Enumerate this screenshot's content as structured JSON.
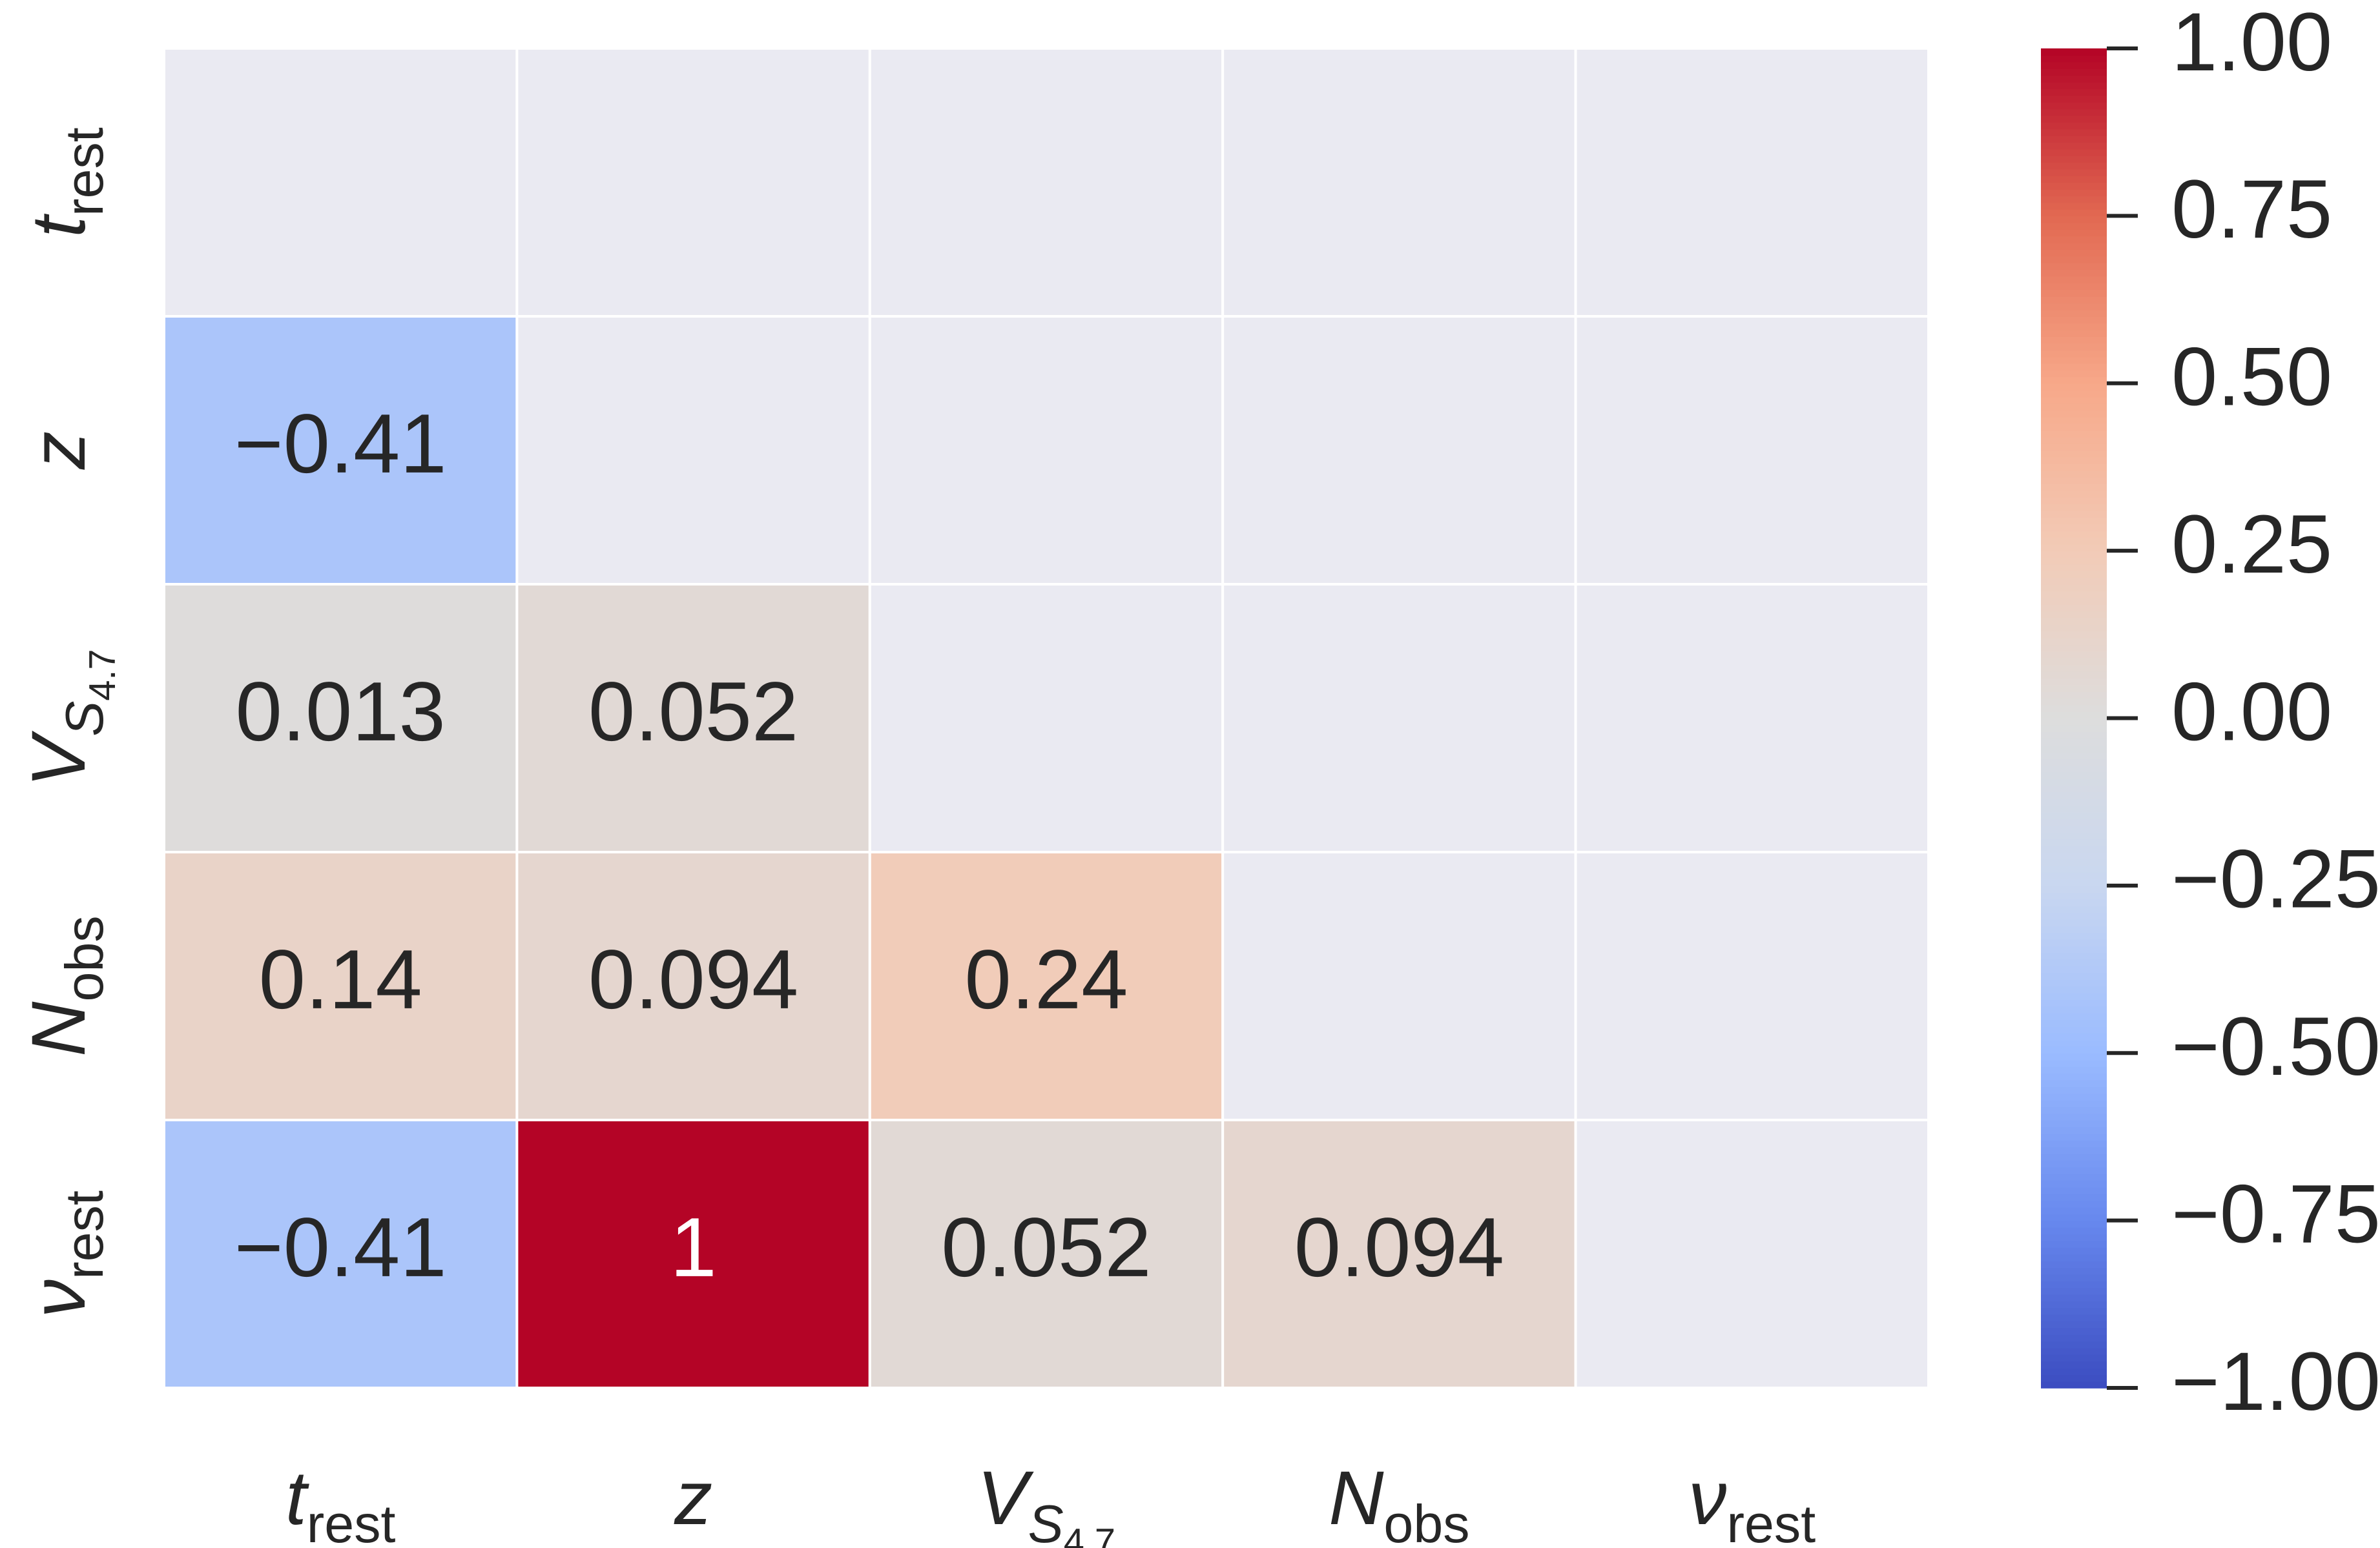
{
  "chart_data": {
    "type": "heatmap",
    "categories": [
      [
        "t",
        "rest"
      ],
      [
        "z"
      ],
      [
        "V",
        "S",
        "4.7"
      ],
      [
        "N",
        "obs"
      ],
      [
        "ν",
        "rest"
      ]
    ],
    "values": [
      [
        null,
        null,
        null,
        null,
        null
      ],
      [
        -0.41,
        null,
        null,
        null,
        null
      ],
      [
        0.013,
        0.052,
        null,
        null,
        null
      ],
      [
        0.14,
        0.094,
        0.24,
        null,
        null
      ],
      [
        -0.41,
        1,
        0.052,
        0.094,
        null
      ]
    ],
    "value_labels": [
      [
        null,
        null,
        null,
        null,
        null
      ],
      [
        "−0.41",
        null,
        null,
        null,
        null
      ],
      [
        "0.013",
        "0.052",
        null,
        null,
        null
      ],
      [
        "0.14",
        "0.094",
        "0.24",
        null,
        null
      ],
      [
        "−0.41",
        "1",
        "0.052",
        "0.094",
        null
      ]
    ],
    "vlim": [
      -1,
      1
    ],
    "colormap": [
      "#3b4cc0",
      "#6788ee",
      "#9abbff",
      "#c9d7f0",
      "#dddddd",
      "#f2cbb7",
      "#f7a889",
      "#e26952",
      "#b40426"
    ],
    "mask_color": "#eaeaf2",
    "cticks": [
      {
        "value": 1,
        "label": "1.00"
      },
      {
        "value": 0.75,
        "label": "0.75"
      },
      {
        "value": 0.5,
        "label": "0.50"
      },
      {
        "value": 0.25,
        "label": "0.25"
      },
      {
        "value": 0,
        "label": "0.00"
      },
      {
        "value": -0.25,
        "label": "−0.25"
      },
      {
        "value": -0.5,
        "label": "−0.50"
      },
      {
        "value": -0.75,
        "label": "−0.75"
      },
      {
        "value": -1,
        "label": "−1.00"
      }
    ]
  }
}
